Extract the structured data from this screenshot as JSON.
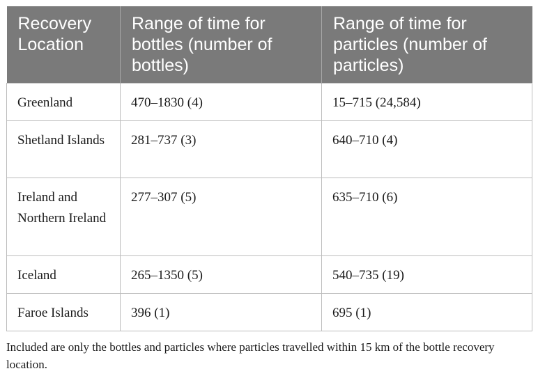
{
  "table": {
    "headers": [
      "Recovery Location",
      "Range of time for bottles (number of bottles)",
      "Range of time for particles (number of particles)"
    ],
    "rows": [
      [
        "Greenland",
        "470–1830 (4)",
        "15–715 (24,584)"
      ],
      [
        "Shetland Islands",
        "281–737 (3)",
        "640–710 (4)"
      ],
      [
        "Ireland and Northern Ireland",
        "277–307 (5)",
        "635–710 (6)"
      ],
      [
        "Iceland",
        "265–1350 (5)",
        "540–735 (19)"
      ],
      [
        "Faroe Islands",
        "396 (1)",
        "695 (1)"
      ]
    ],
    "header_background": "#7a7a7a",
    "header_text_color": "#ffffff"
  },
  "footnote": "Included are only the bottles and particles where particles travelled within 15 km of the bottle recovery location."
}
